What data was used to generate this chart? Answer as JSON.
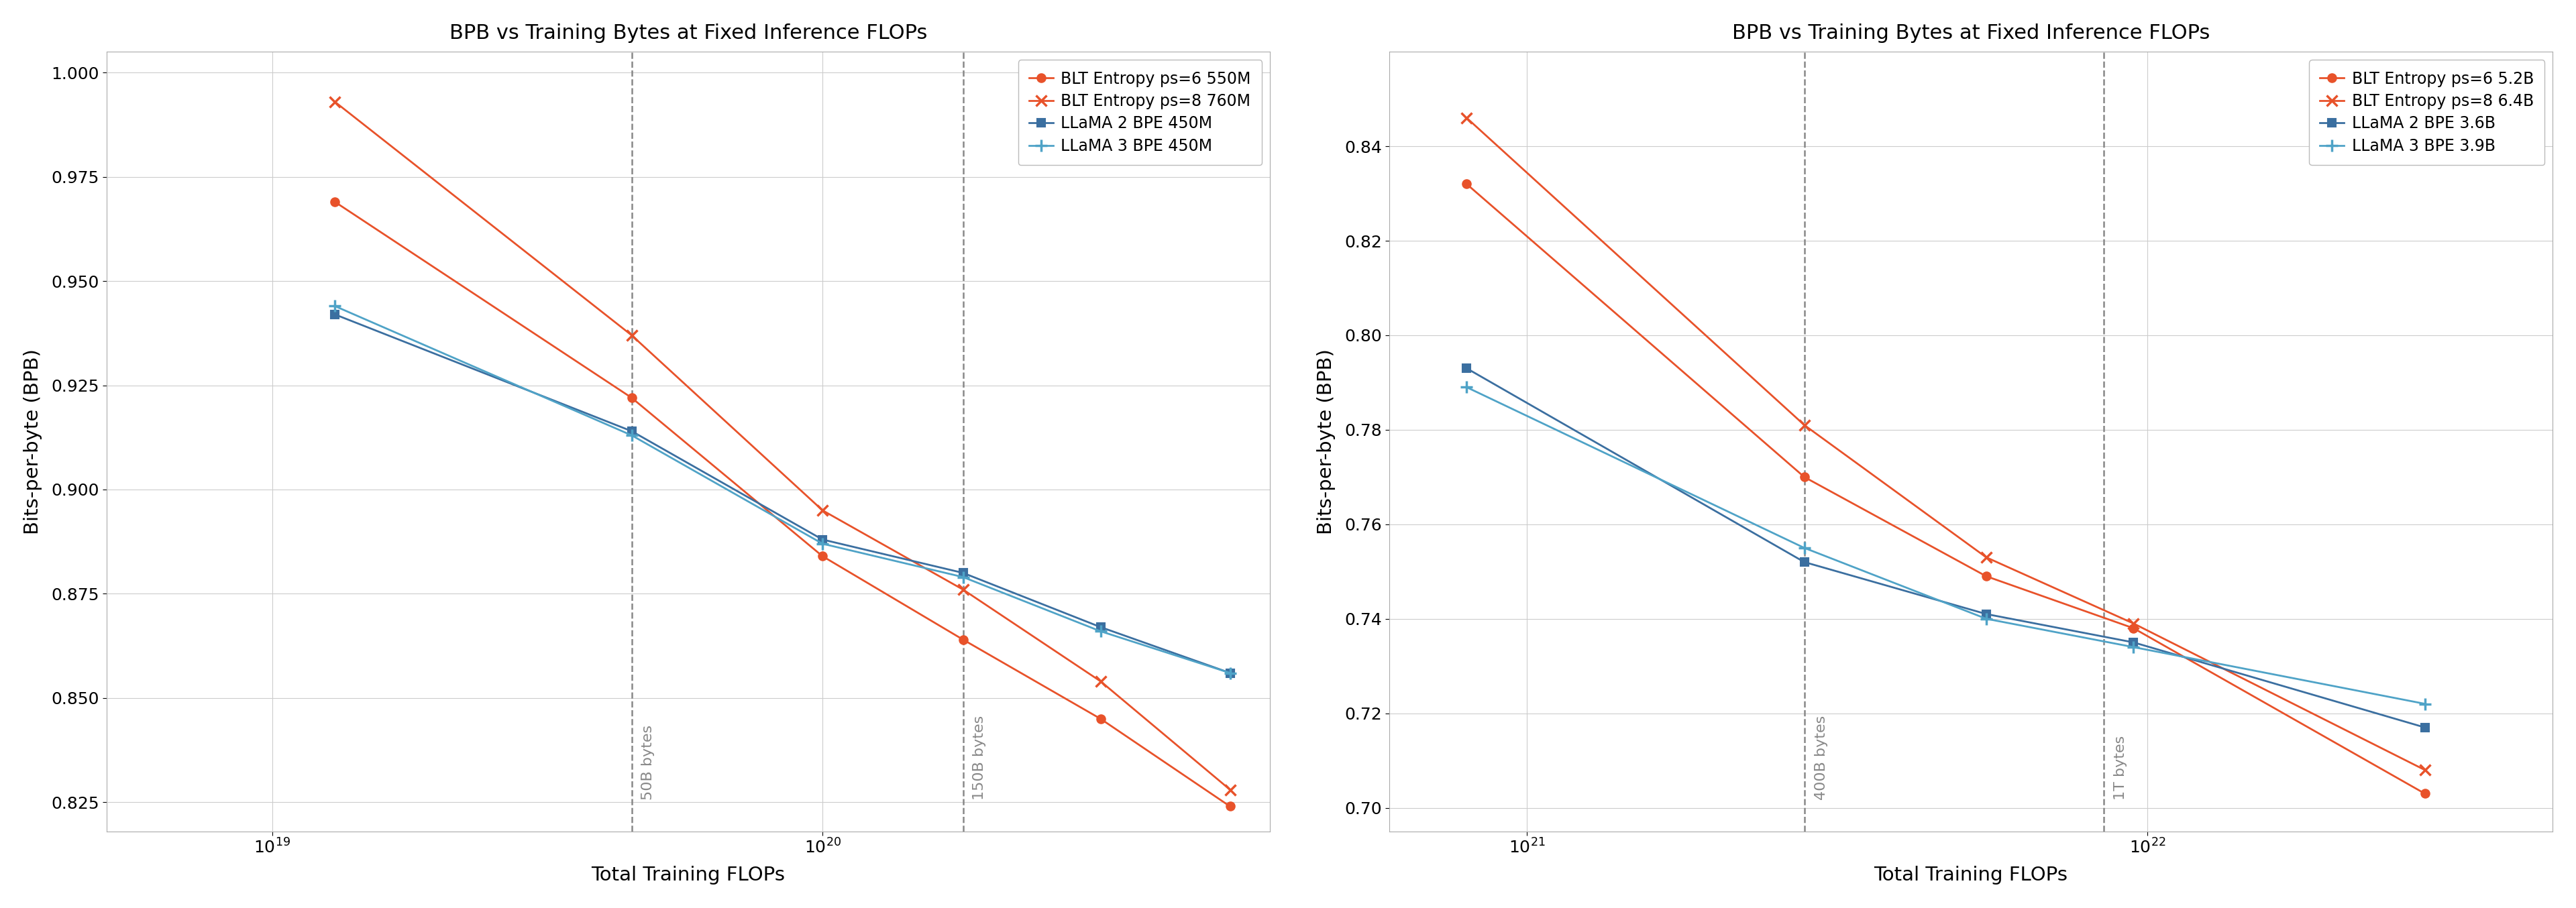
{
  "title": "BPB vs Training Bytes at Fixed Inference FLOPs",
  "xlabel": "Total Training FLOPs",
  "ylabel": "Bits-per-byte (BPB)",
  "background_color": "#ffffff",
  "plot1": {
    "xlim": [
      5e+18,
      6.5e+20
    ],
    "ylim": [
      0.818,
      1.005
    ],
    "yticks": [
      0.825,
      0.85,
      0.875,
      0.9,
      0.925,
      0.95,
      0.975,
      1.0
    ],
    "xticks": [
      1e+19,
      1e+20
    ],
    "vlines": [
      {
        "x": 4.5e+19,
        "label": "50B bytes"
      },
      {
        "x": 1.8e+20,
        "label": "150B bytes"
      }
    ],
    "series": [
      {
        "label": "BLT Entropy ps=6 550M",
        "color": "#e8522a",
        "marker": "o",
        "x": [
          1.3e+19,
          4.5e+19,
          1e+20,
          1.8e+20,
          3.2e+20,
          5.5e+20
        ],
        "y": [
          0.969,
          0.922,
          0.884,
          0.864,
          0.845,
          0.824
        ]
      },
      {
        "label": "BLT Entropy ps=8 760M",
        "color": "#e8522a",
        "marker": "x",
        "x": [
          1.3e+19,
          4.5e+19,
          1e+20,
          1.8e+20,
          3.2e+20,
          5.5e+20
        ],
        "y": [
          0.993,
          0.937,
          0.895,
          0.876,
          0.854,
          0.828
        ]
      },
      {
        "label": "LLaMA 2 BPE 450M",
        "color": "#3b6fa0",
        "marker": "s",
        "x": [
          1.3e+19,
          4.5e+19,
          1e+20,
          1.8e+20,
          3.2e+20,
          5.5e+20
        ],
        "y": [
          0.942,
          0.914,
          0.888,
          0.88,
          0.867,
          0.856
        ]
      },
      {
        "label": "LLaMA 3 BPE 450M",
        "color": "#4fa3c7",
        "marker": "+",
        "x": [
          1.3e+19,
          4.5e+19,
          1e+20,
          1.8e+20,
          3.2e+20,
          5.5e+20
        ],
        "y": [
          0.944,
          0.913,
          0.887,
          0.879,
          0.866,
          0.856
        ]
      }
    ]
  },
  "plot2": {
    "xlim": [
      6e+20,
      4.5e+22
    ],
    "ylim": [
      0.695,
      0.86
    ],
    "yticks": [
      0.7,
      0.72,
      0.74,
      0.76,
      0.78,
      0.8,
      0.82,
      0.84
    ],
    "xticks": [
      1e+21,
      1e+22
    ],
    "vlines": [
      {
        "x": 2.8e+21,
        "label": "400B bytes"
      },
      {
        "x": 8.5e+21,
        "label": "1T bytes"
      }
    ],
    "series": [
      {
        "label": "BLT Entropy ps=6 5.2B",
        "color": "#e8522a",
        "marker": "o",
        "x": [
          8e+20,
          2.8e+21,
          5.5e+21,
          9.5e+21,
          2.8e+22
        ],
        "y": [
          0.832,
          0.77,
          0.749,
          0.738,
          0.703
        ]
      },
      {
        "label": "BLT Entropy ps=8 6.4B",
        "color": "#e8522a",
        "marker": "x",
        "x": [
          8e+20,
          2.8e+21,
          5.5e+21,
          9.5e+21,
          2.8e+22
        ],
        "y": [
          0.846,
          0.781,
          0.753,
          0.739,
          0.708
        ]
      },
      {
        "label": "LLaMA 2 BPE 3.6B",
        "color": "#3b6fa0",
        "marker": "s",
        "x": [
          8e+20,
          2.8e+21,
          5.5e+21,
          9.5e+21,
          2.8e+22
        ],
        "y": [
          0.793,
          0.752,
          0.741,
          0.735,
          0.717
        ]
      },
      {
        "label": "LLaMA 3 BPE 3.9B",
        "color": "#4fa3c7",
        "marker": "+",
        "x": [
          8e+20,
          2.8e+21,
          5.5e+21,
          9.5e+21,
          2.8e+22
        ],
        "y": [
          0.789,
          0.755,
          0.74,
          0.734,
          0.722
        ]
      }
    ]
  }
}
